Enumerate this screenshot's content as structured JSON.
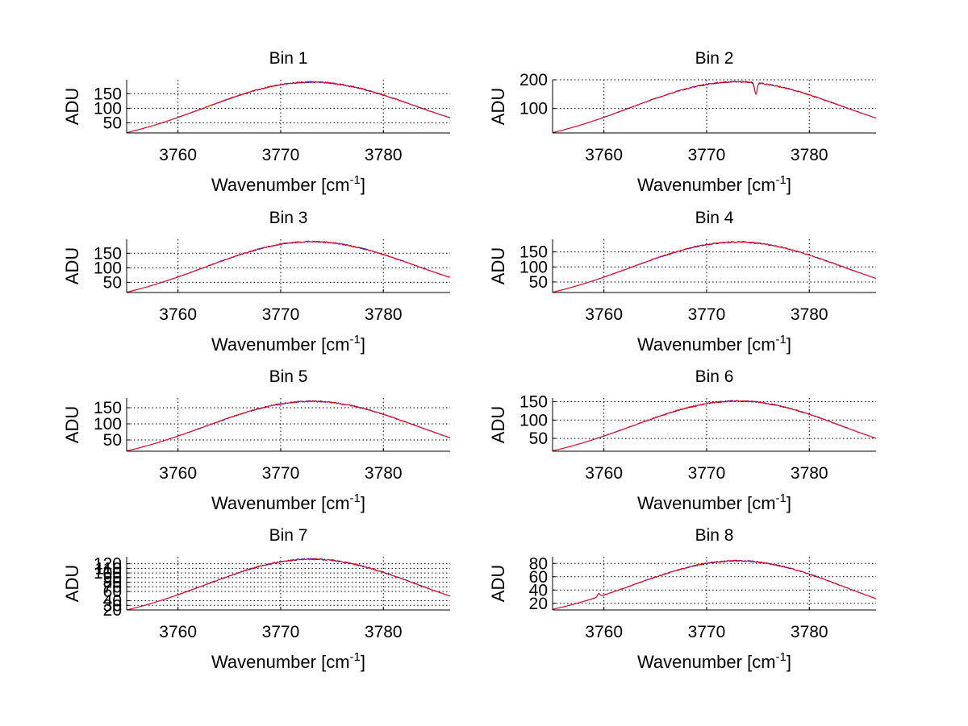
{
  "chart_data": [
    {
      "type": "line",
      "title": "Bin 1",
      "xlabel": "Wavenumber [cm",
      "xlabel_sup": "-1",
      "xlabel_end": "]",
      "ylabel": "ADU",
      "xlim": [
        3755,
        3786.5
      ],
      "ylim": [
        15,
        198
      ],
      "xticks": [
        3760,
        3770,
        3780
      ],
      "yticks": [
        50,
        100,
        150
      ],
      "ytick_labels": [
        "50",
        "100",
        "150"
      ],
      "grid": true,
      "peak": 190,
      "edge_left": 16,
      "edge_right": 67,
      "dips": []
    },
    {
      "type": "line",
      "title": "Bin 2",
      "xlabel": "Wavenumber [cm",
      "xlabel_sup": "-1",
      "xlabel_end": "]",
      "ylabel": "ADU",
      "xlim": [
        3755,
        3786.5
      ],
      "ylim": [
        15,
        200
      ],
      "xticks": [
        3760,
        3770,
        3780
      ],
      "yticks": [
        100,
        200
      ],
      "ytick_labels": [
        "100",
        "200"
      ],
      "grid": true,
      "peak": 193,
      "edge_left": 16,
      "edge_right": 67,
      "dips": [
        [
          3774.8,
          40
        ]
      ]
    },
    {
      "type": "line",
      "title": "Bin 3",
      "xlabel": "Wavenumber [cm",
      "xlabel_sup": "-1",
      "xlabel_end": "]",
      "ylabel": "ADU",
      "xlim": [
        3755,
        3786.5
      ],
      "ylim": [
        15,
        198
      ],
      "xticks": [
        3760,
        3770,
        3780
      ],
      "yticks": [
        50,
        100,
        150
      ],
      "ytick_labels": [
        "50",
        "100",
        "150"
      ],
      "grid": true,
      "peak": 190,
      "edge_left": 16,
      "edge_right": 67,
      "dips": []
    },
    {
      "type": "line",
      "title": "Bin 4",
      "xlabel": "Wavenumber [cm",
      "xlabel_sup": "-1",
      "xlabel_end": "]",
      "ylabel": "ADU",
      "xlim": [
        3755,
        3786.5
      ],
      "ylim": [
        15,
        192
      ],
      "xticks": [
        3760,
        3770,
        3780
      ],
      "yticks": [
        50,
        100,
        150
      ],
      "ytick_labels": [
        "50",
        "100",
        "150"
      ],
      "grid": true,
      "peak": 183,
      "edge_left": 16,
      "edge_right": 62,
      "dips": []
    },
    {
      "type": "line",
      "title": "Bin 5",
      "xlabel": "Wavenumber [cm",
      "xlabel_sup": "-1",
      "xlabel_end": "]",
      "ylabel": "ADU",
      "xlim": [
        3755,
        3786.5
      ],
      "ylim": [
        15,
        180
      ],
      "xticks": [
        3760,
        3770,
        3780
      ],
      "yticks": [
        50,
        100,
        150
      ],
      "ytick_labels": [
        "50",
        "100",
        "150"
      ],
      "grid": true,
      "peak": 170,
      "edge_left": 16,
      "edge_right": 57,
      "dips": []
    },
    {
      "type": "line",
      "title": "Bin 6",
      "xlabel": "Wavenumber [cm",
      "xlabel_sup": "-1",
      "xlabel_end": "]",
      "ylabel": "ADU",
      "xlim": [
        3755,
        3786.5
      ],
      "ylim": [
        15,
        160
      ],
      "xticks": [
        3760,
        3770,
        3780
      ],
      "yticks": [
        50,
        100,
        150
      ],
      "ytick_labels": [
        "50",
        "100",
        "150"
      ],
      "grid": true,
      "peak": 152,
      "edge_left": 16,
      "edge_right": 50,
      "dips": []
    },
    {
      "type": "line",
      "title": "Bin 7",
      "xlabel": "Wavenumber [cm",
      "xlabel_sup": "-1",
      "xlabel_end": "]",
      "ylabel": "ADU",
      "xlim": [
        3755,
        3786.5
      ],
      "ylim": [
        20,
        135
      ],
      "xticks": [
        3760,
        3770,
        3780
      ],
      "yticks": [
        20,
        30,
        40,
        60,
        70,
        80,
        90,
        100,
        110,
        120
      ],
      "ytick_labels": [
        "20",
        "30",
        "40",
        "60",
        "70",
        "80",
        "90",
        "100",
        "110",
        "120"
      ],
      "grid": true,
      "peak": 130,
      "edge_left": 20,
      "edge_right": 50,
      "dips": []
    },
    {
      "type": "line",
      "title": "Bin 8",
      "xlabel": "Wavenumber [cm",
      "xlabel_sup": "-1",
      "xlabel_end": "]",
      "ylabel": "ADU",
      "xlim": [
        3755,
        3786.5
      ],
      "ylim": [
        10,
        90
      ],
      "xticks": [
        3760,
        3770,
        3780
      ],
      "yticks": [
        20,
        40,
        60,
        80
      ],
      "ytick_labels": [
        "20",
        "40",
        "60",
        "80"
      ],
      "grid": true,
      "peak": 84,
      "edge_left": 11,
      "edge_right": 27,
      "dips": [
        [
          3759.5,
          -5
        ]
      ]
    }
  ],
  "series": [
    {
      "name": "trace-blue",
      "color": "#0000ff"
    },
    {
      "name": "trace-red",
      "color": "#ff0000"
    }
  ]
}
